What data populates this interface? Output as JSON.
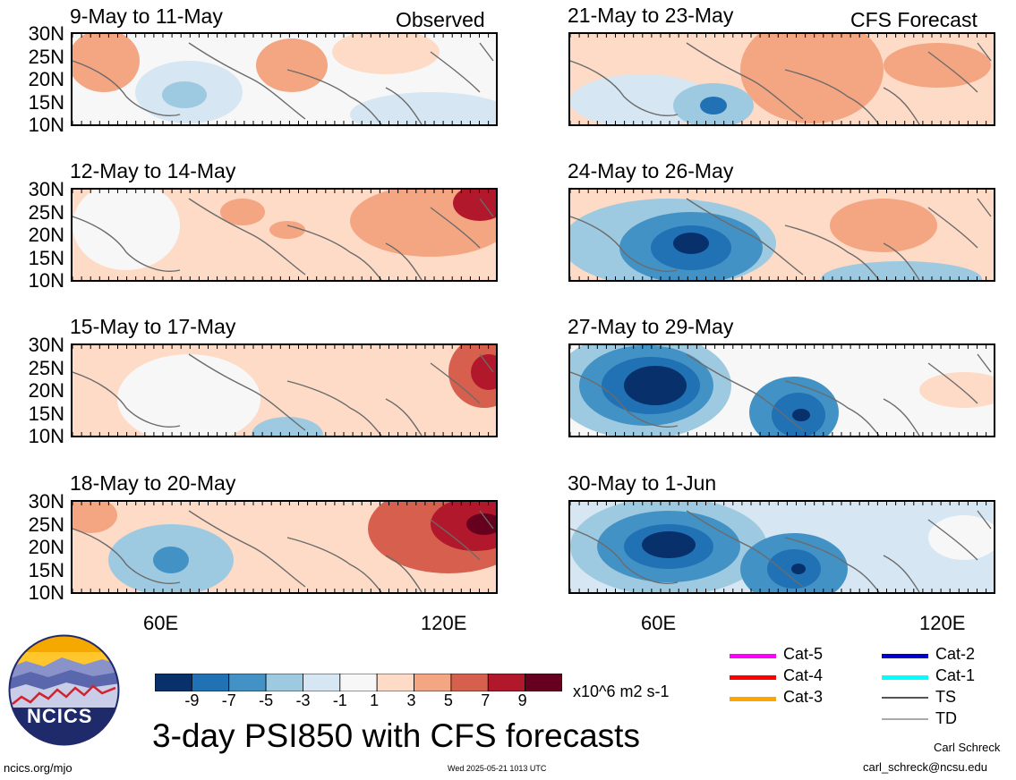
{
  "labels": {
    "observed": "Observed",
    "forecast": "CFS Forecast"
  },
  "panels": [
    {
      "title": "9-May to 11-May"
    },
    {
      "title": "21-May to 23-May"
    },
    {
      "title": "12-May to 14-May"
    },
    {
      "title": "24-May to 26-May"
    },
    {
      "title": "15-May to 17-May"
    },
    {
      "title": "27-May to 29-May"
    },
    {
      "title": "18-May to 20-May"
    },
    {
      "title": "30-May to 1-Jun"
    }
  ],
  "y_ticks": [
    "30N",
    "25N",
    "20N",
    "15N",
    "10N"
  ],
  "x_ticks": [
    "60E",
    "120E"
  ],
  "colorbar": {
    "labels": [
      "-9",
      "-7",
      "-5",
      "-3",
      "-1",
      "1",
      "3",
      "5",
      "7",
      "9"
    ],
    "colors": [
      "#08306b",
      "#2171b5",
      "#4292c6",
      "#9ecae1",
      "#d6e6f2",
      "#f7f7f7",
      "#fddbc7",
      "#f4a582",
      "#d6604d",
      "#b2182b",
      "#67001f"
    ],
    "units": "x10^6 m2 s-1"
  },
  "legend": [
    {
      "label": "Cat-5",
      "color": "#ff00ff"
    },
    {
      "label": "Cat-4",
      "color": "#ff0000"
    },
    {
      "label": "Cat-3",
      "color": "#ffa500"
    },
    {
      "label": "Cat-2",
      "color": "#0000cc"
    },
    {
      "label": "Cat-1",
      "color": "#00ffff"
    },
    {
      "label": "TS",
      "color": "#555555"
    },
    {
      "label": "TD",
      "color": "#aaaaaa"
    }
  ],
  "main_title": "3-day PSI850 with CFS forecasts",
  "logo_text": "NCICS",
  "footer": {
    "url": "ncics.org/mjo",
    "timestamp": "Wed 2025-05-21 1013 UTC",
    "author": "Carl Schreck",
    "email": "carl_schreck@ncsu.edu"
  }
}
